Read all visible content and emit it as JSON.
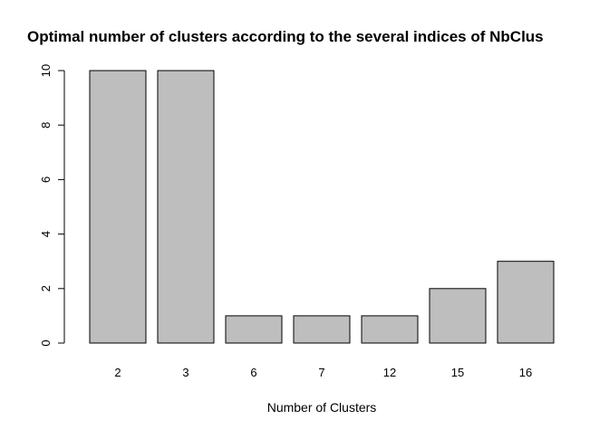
{
  "chart_data": {
    "type": "bar",
    "title": "Optimal number of clusters according to the several indices of NbClus",
    "xlabel": "Number of Clusters",
    "ylabel": "",
    "categories": [
      "2",
      "3",
      "6",
      "7",
      "12",
      "15",
      "16"
    ],
    "values": [
      10,
      10,
      1,
      1,
      1,
      2,
      3
    ],
    "ylim": [
      0,
      10
    ],
    "yticks": [
      0,
      2,
      4,
      6,
      8,
      10
    ],
    "grid": false,
    "legend": "none",
    "bar_fill": "#bebebe",
    "bar_stroke": "#000000"
  }
}
